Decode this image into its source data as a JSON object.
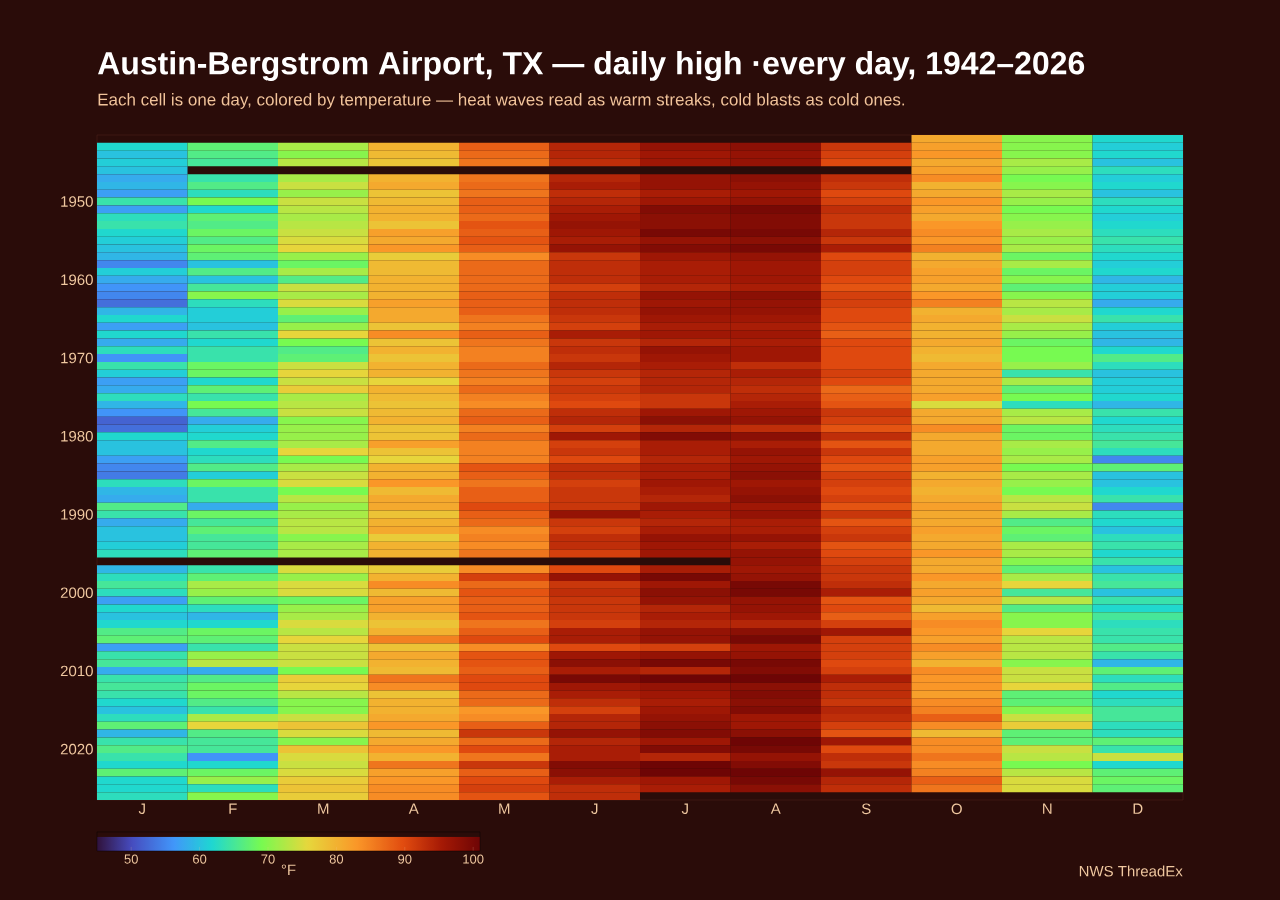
{
  "chart_data": {
    "type": "heatmap",
    "title": "Austin-Bergstrom Airport, TX — daily high ·every day, 1942–2026",
    "subtitle": "Each cell is one day, colored by temperature — heat waves read as warm streaks, cold blasts as cold ones.",
    "categories": [
      "J",
      "F",
      "M",
      "A",
      "M",
      "J",
      "J",
      "A",
      "S",
      "O",
      "N",
      "D"
    ],
    "y_categories": [
      null,
      null,
      null,
      null,
      null,
      null,
      null,
      null,
      "1950",
      null,
      null,
      null,
      null,
      null,
      null,
      null,
      null,
      null,
      "1960",
      null,
      null,
      null,
      null,
      null,
      null,
      null,
      null,
      null,
      "1970",
      null,
      null,
      null,
      null,
      null,
      null,
      null,
      null,
      null,
      "1980",
      null,
      null,
      null,
      null,
      null,
      null,
      null,
      null,
      null,
      "1990",
      null,
      null,
      null,
      null,
      null,
      null,
      null,
      null,
      null,
      "2000",
      null,
      null,
      null,
      null,
      null,
      null,
      null,
      null,
      null,
      "2010",
      null,
      null,
      null,
      null,
      null,
      null,
      null,
      null,
      null,
      "2020",
      null,
      null,
      null,
      null,
      null,
      null
    ],
    "cells": [
      [
        null,
        null,
        null,
        null,
        null,
        null,
        null,
        null,
        null,
        81,
        70,
        62
      ],
      [
        62,
        67,
        72,
        80,
        88,
        94,
        97,
        98,
        92,
        82,
        70,
        61
      ],
      [
        60,
        66,
        70,
        79,
        87,
        94,
        96,
        97,
        91,
        83,
        70,
        62
      ],
      [
        61,
        65,
        73,
        78,
        86,
        93,
        96,
        97,
        90,
        81,
        72,
        60
      ],
      [
        60,
        null,
        null,
        null,
        null,
        null,
        null,
        null,
        null,
        82,
        71,
        63
      ],
      [
        58,
        64,
        72,
        80,
        86,
        94,
        97,
        98,
        93,
        84,
        69,
        61
      ],
      [
        59,
        66,
        74,
        81,
        87,
        95,
        97,
        97,
        92,
        80,
        70,
        62
      ],
      [
        57,
        63,
        71,
        78,
        86,
        93,
        95,
        96,
        90,
        81,
        72,
        60
      ],
      [
        64,
        69,
        74,
        79,
        88,
        94,
        96,
        97,
        91,
        83,
        71,
        63
      ],
      [
        57,
        62,
        73,
        80,
        88,
        95,
        99,
        100,
        93,
        82,
        69,
        62
      ],
      [
        63,
        67,
        72,
        80,
        87,
        96,
        98,
        99,
        92,
        81,
        70,
        61
      ],
      [
        64,
        66,
        73,
        78,
        89,
        97,
        98,
        99,
        92,
        83,
        71,
        62
      ],
      [
        62,
        68,
        74,
        82,
        88,
        96,
        100,
        100,
        94,
        84,
        72,
        63
      ],
      [
        61,
        66,
        75,
        81,
        89,
        95,
        97,
        98,
        92,
        83,
        71,
        64
      ],
      [
        60,
        68,
        76,
        83,
        88,
        97,
        99,
        100,
        95,
        85,
        72,
        63
      ],
      [
        59,
        67,
        71,
        77,
        84,
        92,
        96,
        97,
        90,
        80,
        68,
        62
      ],
      [
        55,
        60,
        68,
        79,
        87,
        93,
        95,
        96,
        91,
        81,
        72,
        61
      ],
      [
        61,
        66,
        72,
        79,
        87,
        93,
        95,
        96,
        91,
        82,
        68,
        62
      ],
      [
        58,
        60,
        66,
        80,
        87,
        93,
        95,
        96,
        90,
        82,
        70,
        59
      ],
      [
        56,
        65,
        74,
        80,
        87,
        91,
        94,
        95,
        89,
        81,
        67,
        61
      ],
      [
        55,
        70,
        72,
        80,
        88,
        93,
        97,
        98,
        91,
        83,
        70,
        61
      ],
      [
        53,
        63,
        75,
        82,
        88,
        93,
        96,
        97,
        91,
        85,
        73,
        58
      ],
      [
        59,
        61,
        71,
        81,
        88,
        93,
        97,
        97,
        90,
        80,
        72,
        62
      ],
      [
        62,
        61,
        67,
        81,
        86,
        92,
        96,
        96,
        90,
        81,
        74,
        64
      ],
      [
        57,
        60,
        71,
        78,
        85,
        91,
        95,
        95,
        89,
        80,
        72,
        61
      ],
      [
        62,
        64,
        76,
        84,
        88,
        95,
        96,
        96,
        88,
        80,
        71,
        60
      ],
      [
        58,
        62,
        69,
        78,
        86,
        92,
        94,
        95,
        90,
        81,
        68,
        59
      ],
      [
        63,
        64,
        66,
        80,
        85,
        93,
        97,
        96,
        90,
        80,
        69,
        62
      ],
      [
        56,
        64,
        67,
        78,
        85,
        92,
        96,
        96,
        90,
        79,
        69,
        66
      ],
      [
        64,
        68,
        74,
        80,
        87,
        94,
        95,
        93,
        90,
        81,
        71,
        63
      ],
      [
        61,
        68,
        76,
        80,
        86,
        92,
        94,
        95,
        91,
        81,
        64,
        60
      ],
      [
        57,
        62,
        74,
        76,
        85,
        91,
        94,
        94,
        90,
        81,
        72,
        61
      ],
      [
        58,
        67,
        77,
        80,
        87,
        92,
        94,
        93,
        87,
        81,
        67,
        61
      ],
      [
        63,
        64,
        72,
        79,
        85,
        91,
        92,
        94,
        88,
        82,
        69,
        62
      ],
      [
        59,
        69,
        73,
        78,
        84,
        90,
        92,
        95,
        89,
        75,
        63,
        59
      ],
      [
        56,
        65,
        74,
        79,
        87,
        93,
        96,
        96,
        92,
        81,
        72,
        64
      ],
      [
        52,
        58,
        70,
        80,
        88,
        94,
        98,
        97,
        91,
        81,
        73,
        62
      ],
      [
        53,
        61,
        71,
        78,
        85,
        91,
        94,
        93,
        89,
        84,
        68,
        63
      ],
      [
        62,
        62,
        71,
        78,
        87,
        96,
        99,
        98,
        93,
        81,
        68,
        64
      ],
      [
        60,
        66,
        72,
        82,
        85,
        91,
        95,
        95,
        89,
        81,
        72,
        65
      ],
      [
        60,
        62,
        76,
        78,
        85,
        92,
        95,
        97,
        92,
        81,
        71,
        63
      ],
      [
        57,
        63,
        69,
        76,
        85,
        90,
        94,
        96,
        90,
        82,
        72,
        55
      ],
      [
        55,
        66,
        72,
        80,
        89,
        93,
        95,
        97,
        89,
        82,
        69,
        67
      ],
      [
        54,
        61,
        74,
        80,
        88,
        93,
        95,
        98,
        91,
        80,
        72,
        60
      ],
      [
        63,
        68,
        75,
        83,
        86,
        91,
        96,
        96,
        91,
        81,
        71,
        60
      ],
      [
        59,
        64,
        69,
        79,
        88,
        92,
        95,
        97,
        90,
        80,
        69,
        62
      ],
      [
        58,
        64,
        73,
        81,
        88,
        92,
        94,
        98,
        91,
        81,
        73,
        64
      ],
      [
        66,
        58,
        71,
        81,
        90,
        92,
        96,
        96,
        89,
        82,
        74,
        55
      ],
      [
        64,
        68,
        72,
        78,
        88,
        97,
        95,
        97,
        92,
        81,
        72,
        63
      ],
      [
        58,
        65,
        73,
        80,
        87,
        92,
        94,
        95,
        89,
        81,
        66,
        62
      ],
      [
        60,
        67,
        73,
        81,
        84,
        91,
        95,
        95,
        91,
        82,
        68,
        60
      ],
      [
        60,
        65,
        70,
        77,
        85,
        93,
        97,
        97,
        92,
        81,
        67,
        63
      ],
      [
        61,
        65,
        72,
        80,
        84,
        93,
        96,
        95,
        89,
        81,
        72,
        64
      ],
      [
        63,
        67,
        72,
        80,
        86,
        91,
        96,
        97,
        90,
        83,
        72,
        62
      ],
      [
        null,
        null,
        null,
        null,
        null,
        null,
        null,
        97,
        91,
        81,
        70,
        64
      ],
      [
        59,
        64,
        75,
        77,
        84,
        90,
        95,
        96,
        92,
        81,
        67,
        60
      ],
      [
        63,
        67,
        71,
        80,
        91,
        97,
        100,
        97,
        92,
        83,
        72,
        64
      ],
      [
        65,
        72,
        75,
        84,
        87,
        92,
        96,
        100,
        93,
        81,
        76,
        65
      ],
      [
        63,
        71,
        75,
        79,
        89,
        93,
        98,
        100,
        95,
        82,
        65,
        60
      ],
      [
        57,
        67,
        68,
        82,
        88,
        92,
        97,
        97,
        89,
        81,
        73,
        64
      ],
      [
        62,
        63,
        71,
        82,
        88,
        92,
        94,
        97,
        90,
        79,
        66,
        62
      ],
      [
        60,
        59,
        72,
        80,
        89,
        92,
        95,
        96,
        88,
        82,
        70,
        65
      ],
      [
        62,
        62,
        75,
        78,
        86,
        91,
        94,
        94,
        91,
        84,
        70,
        63
      ],
      [
        66,
        68,
        73,
        80,
        88,
        95,
        97,
        98,
        96,
        83,
        76,
        64
      ],
      [
        67,
        67,
        76,
        85,
        90,
        95,
        97,
        100,
        91,
        82,
        73,
        64
      ],
      [
        57,
        64,
        74,
        78,
        84,
        90,
        91,
        96,
        91,
        84,
        73,
        66
      ],
      [
        64,
        71,
        74,
        81,
        89,
        96,
        97,
        97,
        91,
        82,
        73,
        64
      ],
      [
        65,
        73,
        74,
        80,
        89,
        98,
        100,
        100,
        90,
        80,
        70,
        59
      ],
      [
        58,
        58,
        69,
        79,
        88,
        95,
        94,
        99,
        91,
        84,
        74,
        67
      ],
      [
        64,
        66,
        77,
        86,
        90,
        100,
        101,
        101,
        95,
        83,
        74,
        63
      ],
      [
        65,
        68,
        76,
        84,
        90,
        96,
        97,
        98,
        93,
        83,
        76,
        66
      ],
      [
        64,
        68,
        73,
        78,
        87,
        95,
        96,
        99,
        93,
        82,
        67,
        62
      ],
      [
        62,
        66,
        70,
        80,
        87,
        93,
        95,
        98,
        92,
        84,
        67,
        63
      ],
      [
        60,
        64,
        70,
        80,
        83,
        91,
        96,
        99,
        94,
        85,
        70,
        65
      ],
      [
        63,
        72,
        74,
        81,
        84,
        94,
        97,
        96,
        93,
        88,
        74,
        65
      ],
      [
        67,
        76,
        78,
        83,
        88,
        94,
        98,
        96,
        91,
        84,
        77,
        63
      ],
      [
        59,
        66,
        75,
        79,
        92,
        97,
        99,
        98,
        89,
        79,
        67,
        63
      ],
      [
        64,
        65,
        70,
        81,
        87,
        94,
        96,
        101,
        96,
        84,
        67,
        67
      ],
      [
        66,
        65,
        78,
        83,
        90,
        95,
        99,
        100,
        90,
        84,
        74,
        64
      ],
      [
        64,
        56,
        75,
        80,
        86,
        95,
        94,
        97,
        93,
        86,
        73,
        74
      ],
      [
        62,
        62,
        74,
        86,
        92,
        99,
        101,
        99,
        92,
        84,
        69,
        62
      ],
      [
        67,
        68,
        75,
        82,
        88,
        98,
        101,
        101,
        97,
        85,
        73,
        67
      ],
      [
        62,
        71,
        77,
        83,
        90,
        95,
        96,
        100,
        94,
        88,
        75,
        68
      ],
      [
        62,
        63,
        78,
        84,
        91,
        93,
        95,
        98,
        93,
        86,
        75,
        67
      ],
      [
        63,
        70,
        77,
        84,
        89,
        93,
        null,
        null,
        null,
        null,
        null,
        null
      ]
    ],
    "clim": [
      45,
      101
    ],
    "cticks": [
      50,
      60,
      70,
      80,
      90,
      100
    ],
    "clabel": "°F",
    "annotations": [
      "NWS ThreadEx"
    ]
  }
}
